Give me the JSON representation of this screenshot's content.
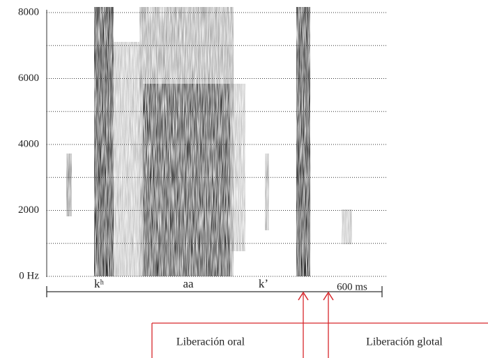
{
  "chart_data": {
    "type": "spectrogram",
    "ylim": [
      0,
      8000
    ],
    "yticks": [
      {
        "value": 0,
        "label": "0 Hz"
      },
      2000,
      4000,
      6000,
      8000
    ],
    "minor_yticks": [
      1000,
      3000,
      5000,
      7000
    ],
    "grid": true,
    "segments": [
      "kʰ",
      "aa",
      "kʼ"
    ],
    "x_end_label": "600 ms",
    "annotations": [
      "Liberación oral",
      "Liberación glotal"
    ],
    "annotation_color": "#d7262b"
  }
}
